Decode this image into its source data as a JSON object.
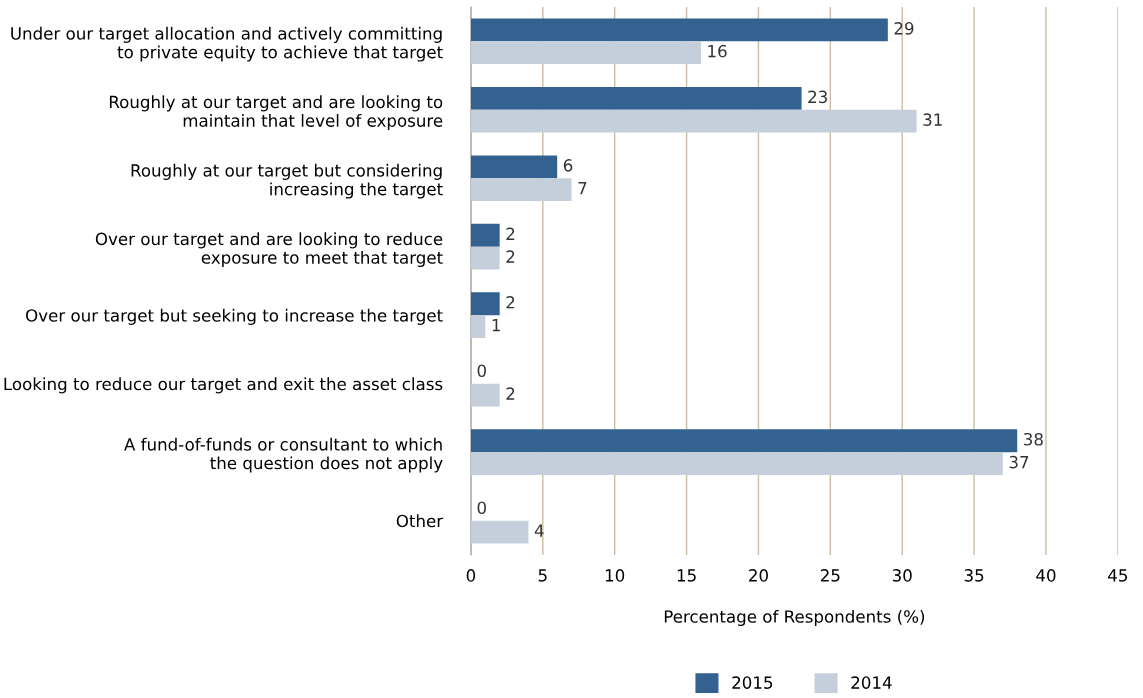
{
  "chart_data": {
    "type": "bar",
    "orientation": "horizontal",
    "categories": [
      "Under our target allocation and actively committing\nto private equity to achieve that target",
      "Roughly at our target and are looking to\nmaintain that level of exposure",
      "Roughly at our target but considering\nincreasing the target",
      "Over our target and are looking to reduce\nexposure to meet that target",
      "Over our target but seeking to increase the target",
      "Looking to reduce our target and exit the asset class",
      "A fund-of-funds or consultant to which\nthe question does not apply",
      "Other"
    ],
    "series": [
      {
        "name": "2015",
        "color": "#336190",
        "values": [
          29,
          23,
          6,
          2,
          2,
          0,
          38,
          0
        ]
      },
      {
        "name": "2014",
        "color": "#c5cfdc",
        "values": [
          16,
          31,
          7,
          2,
          1,
          2,
          37,
          4
        ]
      }
    ],
    "xlabel": "Percentage of Respondents (%)",
    "xlim": [
      0,
      45
    ],
    "xticks": [
      0,
      5,
      10,
      15,
      20,
      25,
      30,
      35,
      40,
      45
    ],
    "grid": "x",
    "legend": "bottom",
    "data_labels": true
  }
}
